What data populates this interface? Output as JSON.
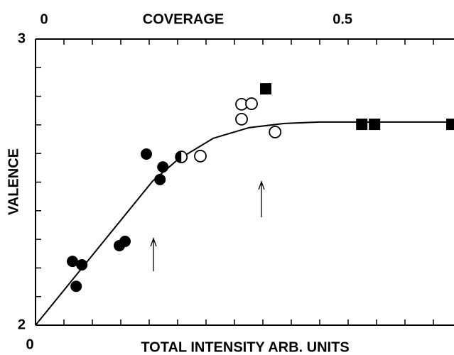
{
  "chart_data": {
    "type": "scatter",
    "title": "COVERAGE",
    "x_label": "TOTAL INTENSITY ARB. UNITS",
    "y_label": "VALENCE",
    "xlim": [
      0,
      14.725
    ],
    "xticks": [
      0
    ],
    "xminorticks": [
      1,
      2,
      3,
      4,
      5,
      6,
      7,
      8,
      9,
      10,
      11,
      12,
      13,
      14
    ],
    "x2lim": [
      0,
      0.701
    ],
    "x2ticks": [
      0,
      0.5
    ],
    "ylim": [
      2,
      3
    ],
    "yticks": [
      2,
      3
    ],
    "yminorticks": [
      2.1,
      2.2,
      2.3,
      2.4,
      2.5,
      2.6,
      2.7,
      2.8,
      2.9
    ],
    "series": [
      {
        "marker": "filled-circle",
        "color": "#000",
        "x": [
          1.3,
          1.63,
          1.43,
          2.95,
          3.15,
          3.9,
          4.38,
          4.48
        ],
        "values": [
          2.223,
          2.211,
          2.136,
          2.278,
          2.293,
          2.598,
          2.509,
          2.553
        ]
      },
      {
        "marker": "half-circle",
        "color": "#000",
        "x": [
          5.13
        ],
        "values": [
          2.588
        ]
      },
      {
        "marker": "open-circle",
        "color": "#000",
        "x": [
          5.8,
          7.25,
          7.6,
          7.25,
          8.43
        ],
        "values": [
          2.591,
          2.772,
          2.774,
          2.72,
          2.675
        ]
      },
      {
        "marker": "square",
        "color": "#000",
        "x": [
          8.1,
          11.48,
          11.93,
          14.65
        ],
        "values": [
          2.826,
          2.702,
          2.702,
          2.702
        ]
      },
      {
        "marker": "line",
        "color": "#000",
        "x": [
          0,
          4.125,
          5,
          6.25,
          7.5,
          8.75,
          10,
          14.725
        ],
        "values": [
          2,
          2.504,
          2.578,
          2.653,
          2.69,
          2.705,
          2.71,
          2.71
        ]
      }
    ]
  }
}
